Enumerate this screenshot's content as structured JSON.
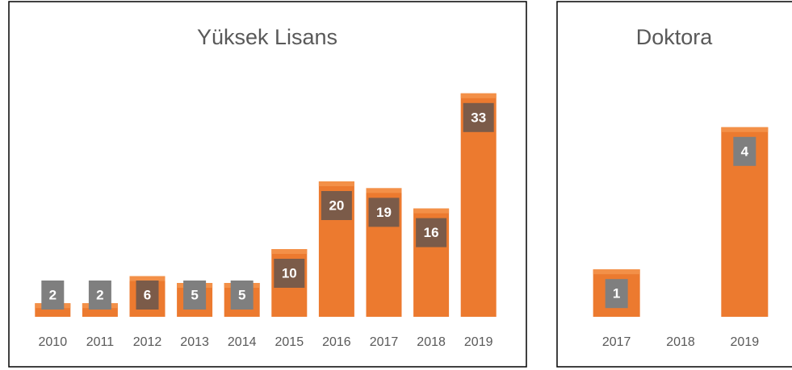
{
  "chart_data": [
    {
      "type": "bar",
      "title": "Yüksek Lisans",
      "categories": [
        "2010",
        "2011",
        "2012",
        "2013",
        "2014",
        "2015",
        "2016",
        "2017",
        "2018",
        "2019"
      ],
      "values": [
        2,
        2,
        6,
        5,
        5,
        10,
        20,
        19,
        16,
        33
      ],
      "color": "#ec7a2f",
      "ylim": [
        0,
        35
      ]
    },
    {
      "type": "bar",
      "title": "Doktora",
      "categories": [
        "2017",
        "2018",
        "2019"
      ],
      "values": [
        1,
        null,
        4
      ],
      "color": "#ec7a2f",
      "ylim": [
        0,
        5
      ]
    }
  ]
}
